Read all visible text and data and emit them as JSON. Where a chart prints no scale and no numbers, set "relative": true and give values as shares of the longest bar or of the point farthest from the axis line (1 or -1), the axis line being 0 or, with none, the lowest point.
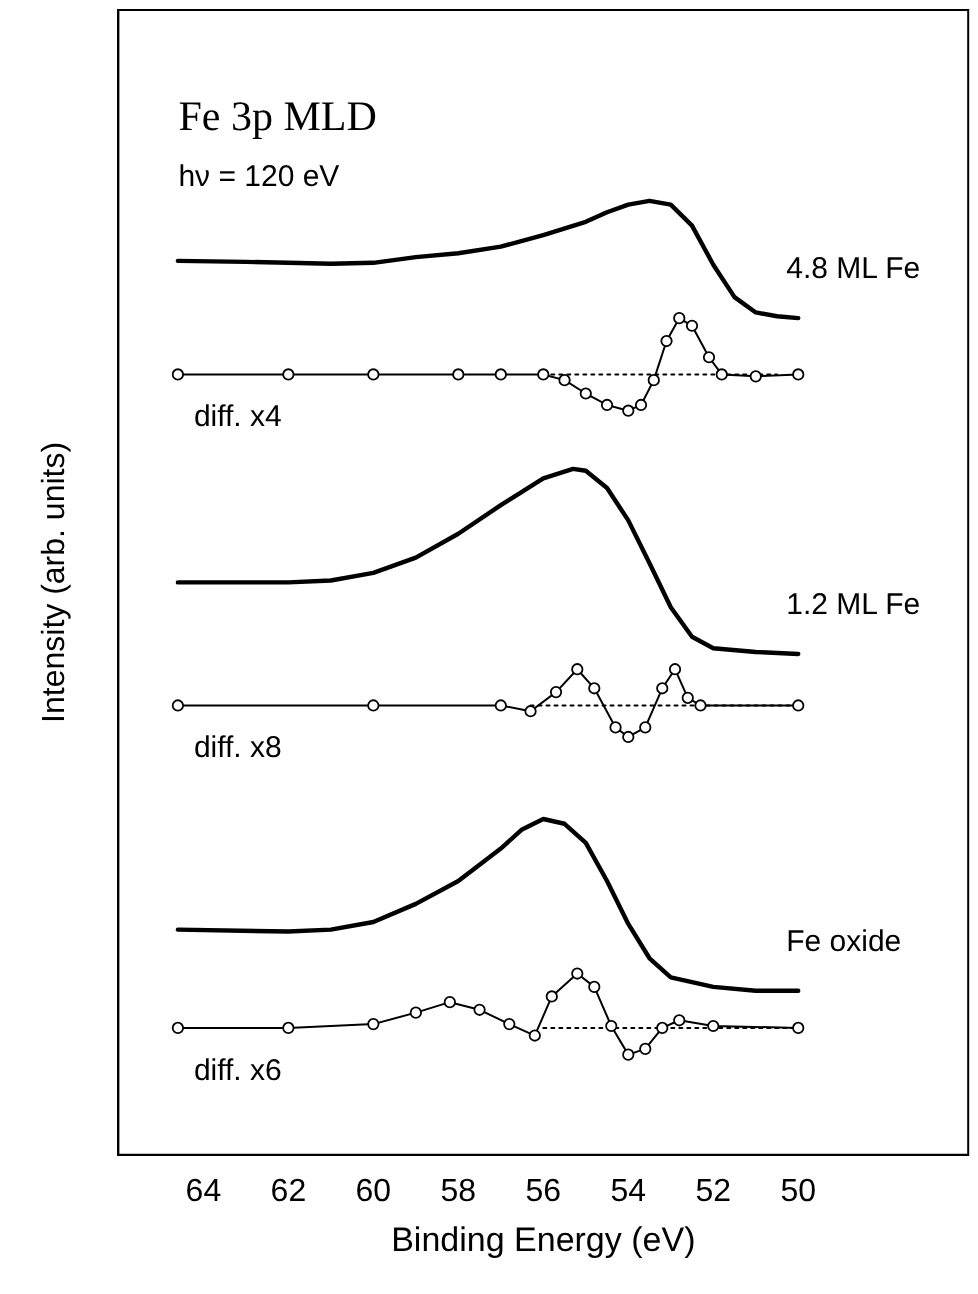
{
  "chart_data": {
    "type": "line",
    "title": "Fe 3p MLD",
    "annotations": [
      "hν = 120 eV"
    ],
    "xlabel": "Binding Energy (eV)",
    "ylabel": "Intensity (arb. units)",
    "relative": true,
    "xlim": [
      66,
      46
    ],
    "xticks": [
      64,
      62,
      60,
      58,
      56,
      54,
      52,
      50
    ],
    "grid": false,
    "legend": false,
    "series": [
      {
        "name": "4.8 ML Fe",
        "type": "line",
        "color": "#000000",
        "x": [
          64.6,
          63,
          62,
          61,
          60,
          59,
          58,
          57,
          56,
          55,
          54.5,
          54,
          53.5,
          53,
          52.5,
          52,
          51.5,
          51,
          50.5,
          50
        ],
        "values": [
          0.937,
          0.936,
          0.935,
          0.934,
          0.935,
          0.941,
          0.945,
          0.952,
          0.964,
          0.978,
          0.988,
          0.996,
          1,
          0.996,
          0.974,
          0.933,
          0.899,
          0.883,
          0.879,
          0.877
        ]
      },
      {
        "name": "diff. x4",
        "type": "scatter",
        "color": "#000000",
        "x": [
          64.6,
          62,
          60,
          58,
          57,
          56,
          55.5,
          55,
          54.5,
          54,
          53.7,
          53.4,
          53.1,
          52.8,
          52.5,
          52.1,
          51.8,
          51,
          50
        ],
        "values": [
          0.818,
          0.818,
          0.818,
          0.818,
          0.818,
          0.818,
          0.812,
          0.798,
          0.786,
          0.78,
          0.786,
          0.812,
          0.853,
          0.877,
          0.869,
          0.836,
          0.818,
          0.816,
          0.818
        ]
      },
      {
        "type": "line",
        "color": "#000000",
        "x": [
          64.6,
          62,
          60,
          58,
          57,
          56,
          55.5,
          55,
          54.5,
          54,
          53.7,
          53.4,
          53.1,
          52.8,
          52.5,
          52.1,
          51.8,
          51,
          50
        ],
        "values": [
          0.818,
          0.818,
          0.818,
          0.818,
          0.818,
          0.818,
          0.812,
          0.798,
          0.786,
          0.78,
          0.786,
          0.812,
          0.853,
          0.877,
          0.869,
          0.836,
          0.818,
          0.816,
          0.818
        ]
      },
      {
        "type": "line",
        "line_style": "dotted",
        "color": "#000000",
        "x": [
          56,
          50.5
        ],
        "values": [
          0.818,
          0.818
        ]
      },
      {
        "name": "1.2 ML Fe",
        "type": "line",
        "color": "#000000",
        "x": [
          64.6,
          62,
          61,
          60,
          59,
          58,
          57,
          56,
          55.3,
          55,
          54.5,
          54,
          53.5,
          53,
          52.5,
          52,
          51,
          50
        ],
        "values": [
          0.6,
          0.6,
          0.602,
          0.61,
          0.626,
          0.651,
          0.681,
          0.709,
          0.719,
          0.717,
          0.699,
          0.665,
          0.62,
          0.574,
          0.543,
          0.531,
          0.527,
          0.525
        ]
      },
      {
        "name": "diff. x8",
        "type": "scatter",
        "color": "#000000",
        "x": [
          64.6,
          60,
          57,
          56.3,
          55.7,
          55.2,
          54.8,
          54.3,
          54,
          53.6,
          53.2,
          52.9,
          52.6,
          52.3,
          50
        ],
        "values": [
          0.471,
          0.471,
          0.471,
          0.465,
          0.485,
          0.509,
          0.489,
          0.448,
          0.438,
          0.448,
          0.489,
          0.509,
          0.479,
          0.471,
          0.471
        ]
      },
      {
        "type": "line",
        "color": "#000000",
        "x": [
          64.6,
          60,
          57,
          56.3,
          55.7,
          55.2,
          54.8,
          54.3,
          54,
          53.6,
          53.2,
          52.9,
          52.6,
          52.3,
          50
        ],
        "values": [
          0.471,
          0.471,
          0.471,
          0.465,
          0.485,
          0.509,
          0.489,
          0.448,
          0.438,
          0.448,
          0.489,
          0.509,
          0.479,
          0.471,
          0.471
        ]
      },
      {
        "type": "line",
        "line_style": "dotted",
        "color": "#000000",
        "x": [
          56.3,
          50
        ],
        "values": [
          0.471,
          0.471
        ]
      },
      {
        "name": "Fe oxide",
        "type": "line",
        "color": "#000000",
        "x": [
          64.6,
          62,
          61,
          60,
          59,
          58,
          57,
          56.5,
          56,
          55.5,
          55,
          54.5,
          54,
          53.5,
          53,
          52,
          51,
          50
        ],
        "values": [
          0.236,
          0.234,
          0.236,
          0.244,
          0.263,
          0.287,
          0.321,
          0.341,
          0.352,
          0.347,
          0.327,
          0.287,
          0.242,
          0.206,
          0.186,
          0.176,
          0.172,
          0.172
        ]
      },
      {
        "name": "diff. x6",
        "type": "scatter",
        "color": "#000000",
        "x": [
          64.6,
          62,
          60,
          59,
          58.2,
          57.5,
          56.8,
          56.2,
          55.8,
          55.2,
          54.8,
          54.4,
          54,
          53.6,
          53.2,
          52.8,
          52,
          50
        ],
        "values": [
          0.133,
          0.133,
          0.137,
          0.149,
          0.16,
          0.152,
          0.137,
          0.125,
          0.166,
          0.19,
          0.176,
          0.135,
          0.105,
          0.111,
          0.133,
          0.141,
          0.135,
          0.133
        ]
      },
      {
        "type": "line",
        "color": "#000000",
        "x": [
          64.6,
          62,
          60,
          59,
          58.2,
          57.5,
          56.8,
          56.2,
          55.8,
          55.2,
          54.8,
          54.4,
          54,
          53.6,
          53.2,
          52.8,
          52,
          50
        ],
        "values": [
          0.133,
          0.133,
          0.137,
          0.149,
          0.16,
          0.152,
          0.137,
          0.125,
          0.166,
          0.19,
          0.176,
          0.135,
          0.105,
          0.111,
          0.133,
          0.141,
          0.135,
          0.133
        ]
      },
      {
        "type": "line",
        "line_style": "dotted",
        "color": "#000000",
        "x": [
          56,
          50
        ],
        "values": [
          0.133,
          0.133
        ]
      }
    ]
  }
}
